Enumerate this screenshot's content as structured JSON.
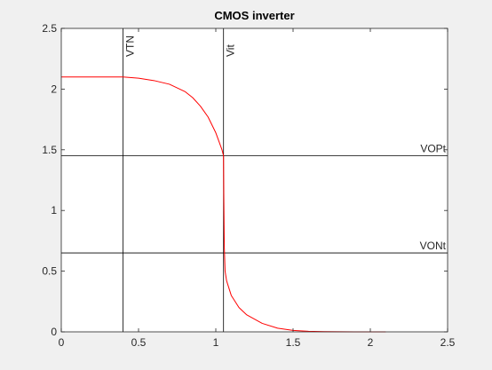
{
  "chart_data": {
    "type": "line",
    "title": "CMOS inverter",
    "xlabel": "",
    "ylabel": "",
    "xlim": [
      0,
      2.5
    ],
    "ylim": [
      0,
      2.5
    ],
    "x_ticks": [
      0,
      0.5,
      1,
      1.5,
      2,
      2.5
    ],
    "y_ticks": [
      0,
      0.5,
      1,
      1.5,
      2,
      2.5
    ],
    "x_tick_labels": [
      "0",
      "0.5",
      "1",
      "1.5",
      "2",
      "2.5"
    ],
    "y_tick_labels": [
      "0",
      "0.5",
      "1",
      "1.5",
      "2",
      "2.5"
    ],
    "grid": false,
    "series": [
      {
        "color": "#ff0000",
        "x": [
          0,
          0.2,
          0.4,
          0.5,
          0.6,
          0.7,
          0.8,
          0.85,
          0.9,
          0.95,
          1.0,
          1.02,
          1.04,
          1.05,
          1.052,
          1.055,
          1.06,
          1.07,
          1.1,
          1.15,
          1.2,
          1.3,
          1.4,
          1.5,
          1.6,
          1.7,
          1.8,
          1.9,
          2.0,
          2.1
        ],
        "y": [
          2.1,
          2.1,
          2.1,
          2.09,
          2.07,
          2.04,
          1.98,
          1.93,
          1.86,
          1.77,
          1.64,
          1.57,
          1.5,
          1.45,
          1.1,
          0.7,
          0.5,
          0.42,
          0.3,
          0.2,
          0.14,
          0.07,
          0.03,
          0.012,
          0.005,
          0.002,
          0.001,
          0.0,
          0.0,
          0.0
        ]
      }
    ],
    "vertical_lines": [
      {
        "x": 0.4,
        "label": "VTN",
        "color": "#000000"
      },
      {
        "x": 1.05,
        "label": "Vit",
        "color": "#000000"
      }
    ],
    "horizontal_lines": [
      {
        "y": 1.45,
        "label": "VOPt",
        "color": "#000000"
      },
      {
        "y": 0.65,
        "label": "VONt",
        "color": "#000000"
      }
    ]
  }
}
